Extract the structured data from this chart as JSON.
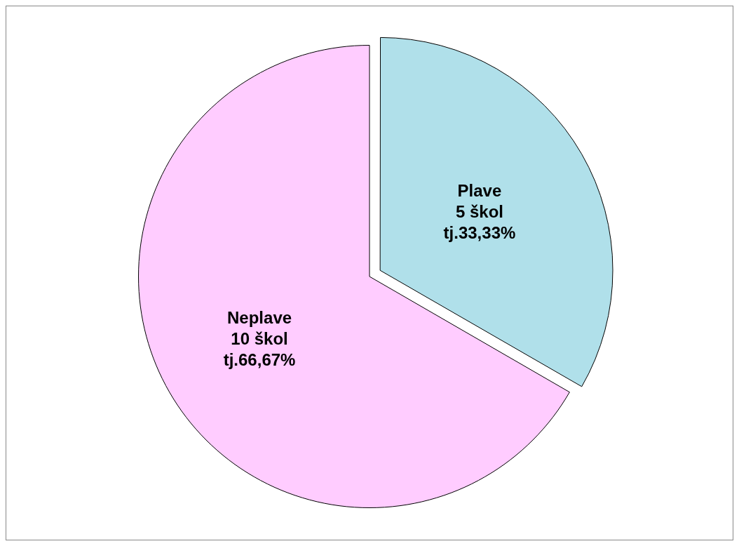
{
  "chart_data": {
    "type": "pie",
    "categories": [
      "Plave",
      "Neplave"
    ],
    "values": [
      5,
      10
    ],
    "colors": [
      "#b0e0ea",
      "#ffccff"
    ],
    "value_labels": [
      "5 škol\ntj.33,33%",
      "10 škol\ntj.66,67%"
    ],
    "legend": false
  }
}
